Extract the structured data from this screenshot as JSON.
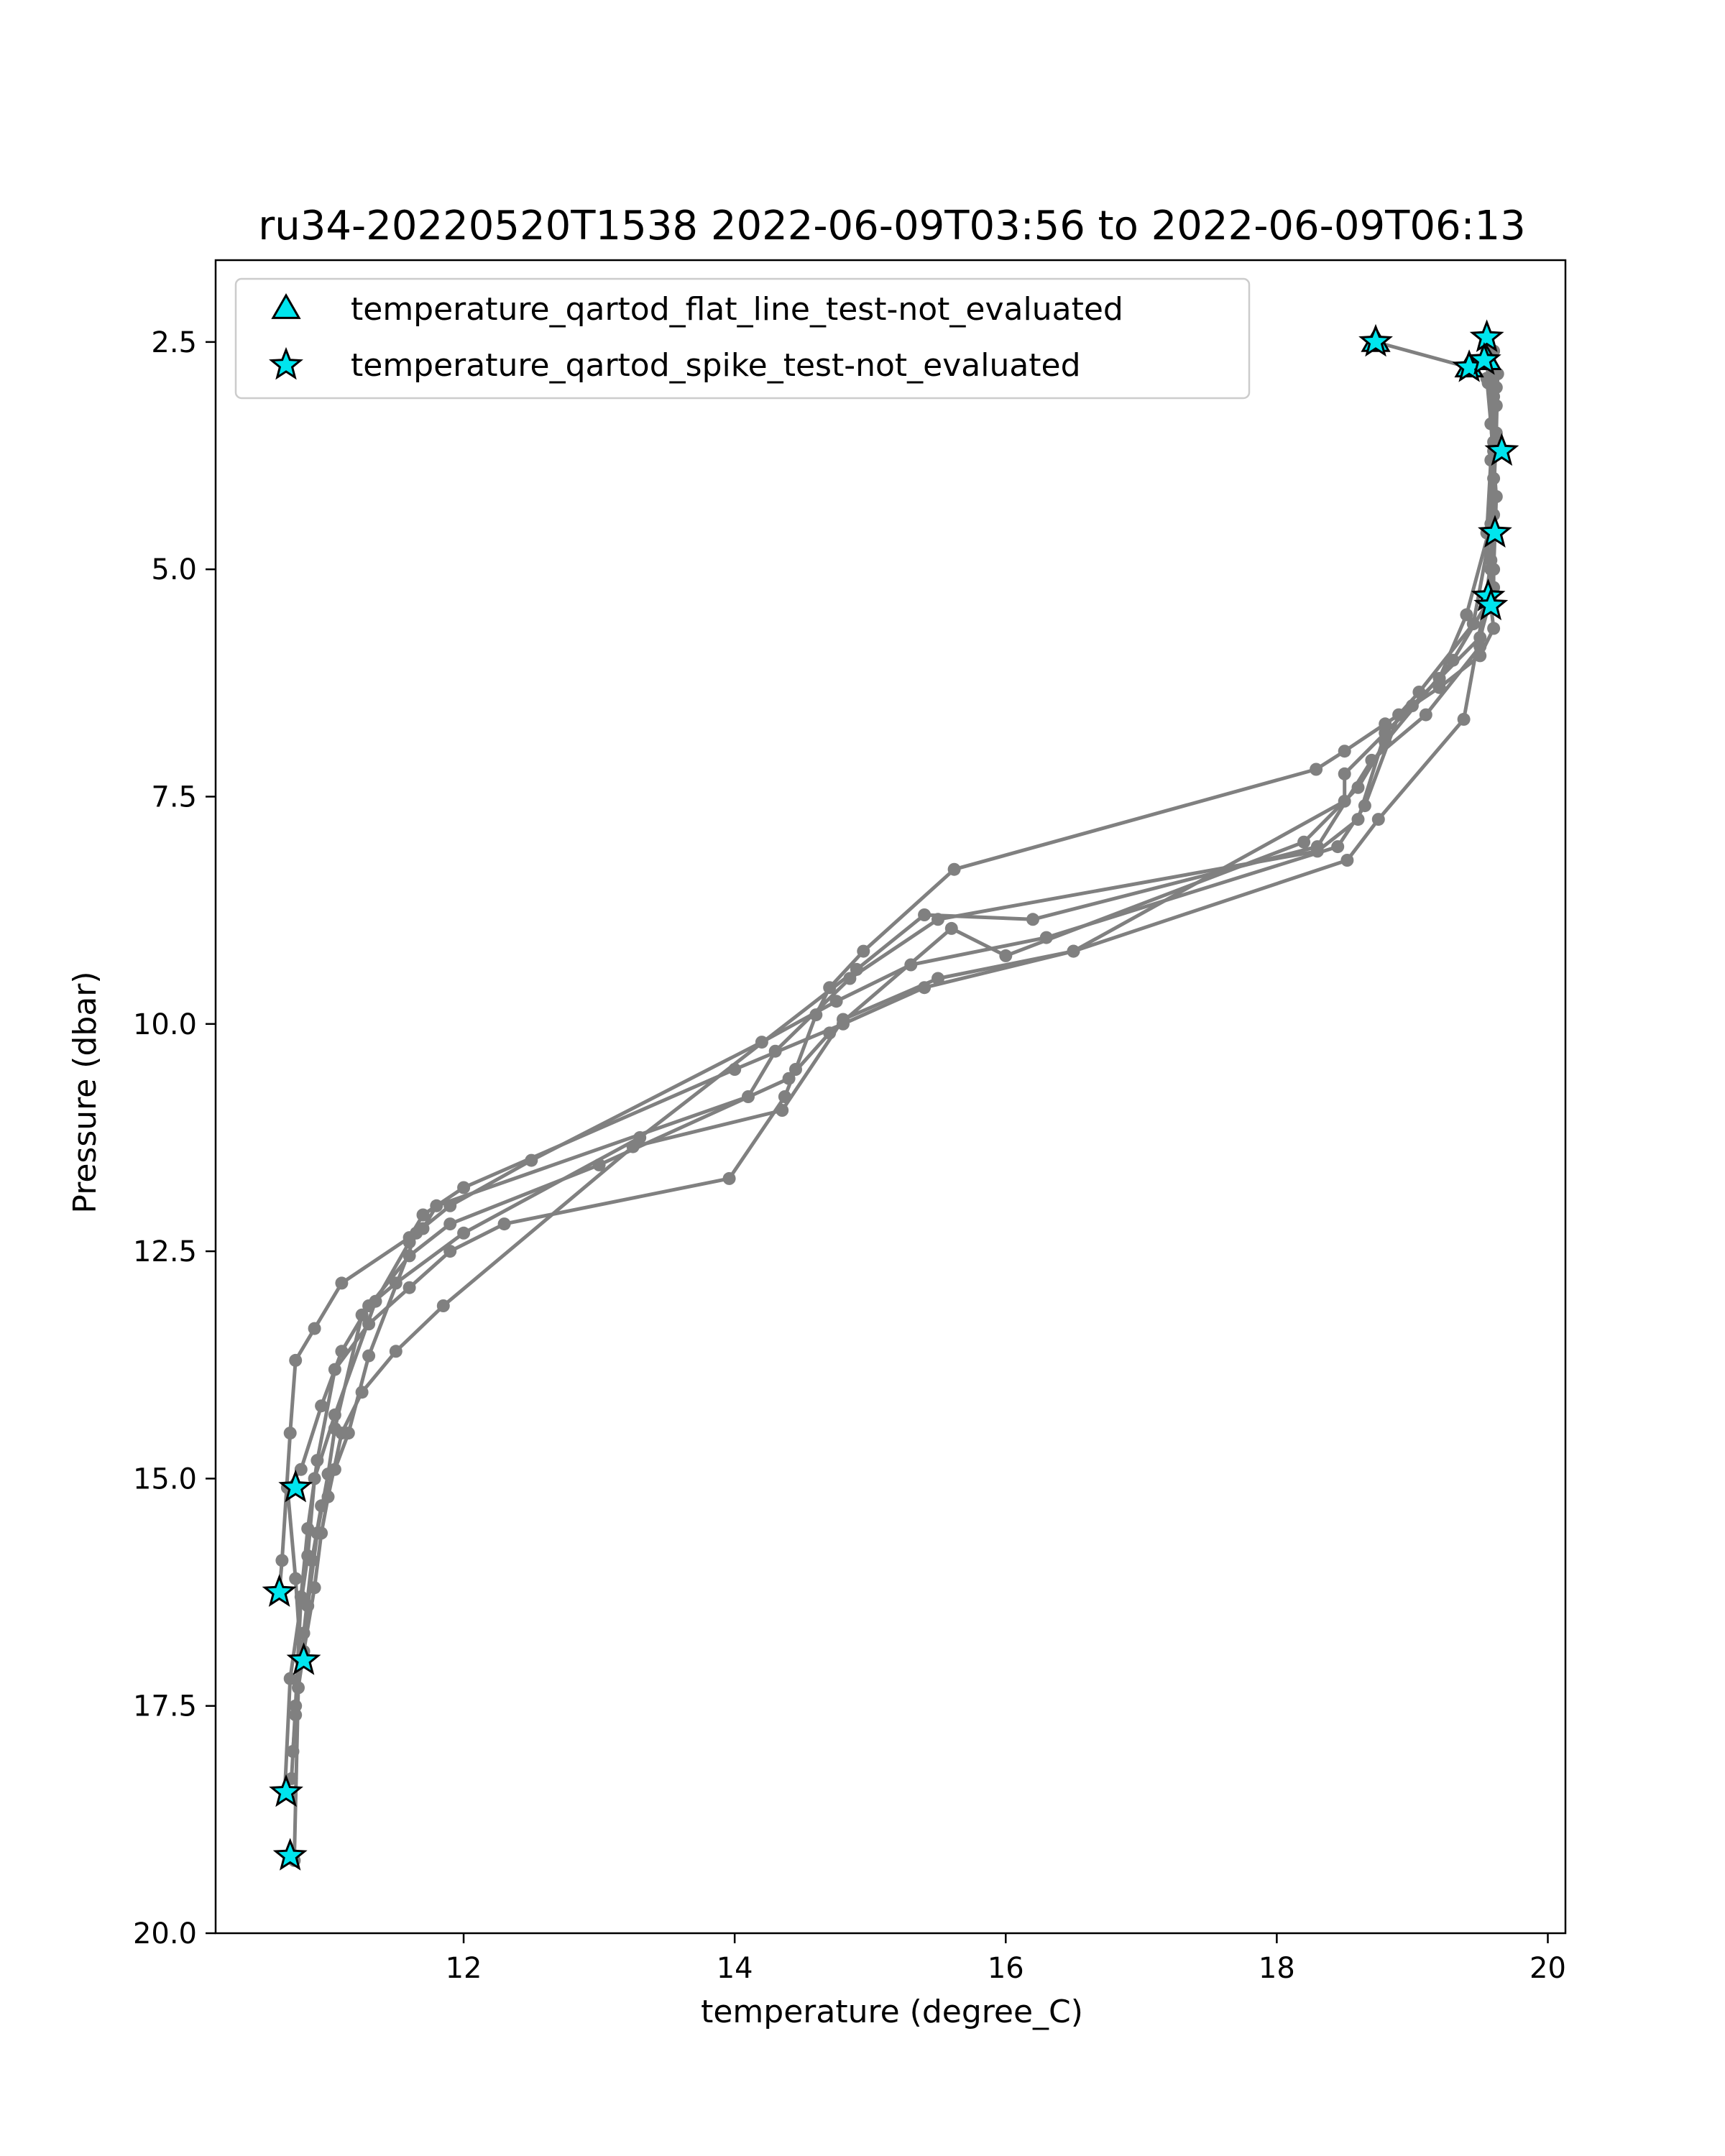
{
  "chart_data": {
    "type": "line",
    "title": "ru34-20220520T1538 2022-06-09T03:56 to 2022-06-09T06:13",
    "xlabel": "temperature (degree_C)",
    "ylabel": "Pressure (dbar)",
    "xlim": [
      10.17,
      20.13
    ],
    "ylim": [
      20.0,
      1.6
    ],
    "y_inverted": true,
    "xticks": [
      12,
      14,
      16,
      18,
      20
    ],
    "xtick_labels": [
      "12",
      "14",
      "16",
      "18",
      "20"
    ],
    "yticks": [
      2.5,
      5.0,
      7.5,
      10.0,
      12.5,
      15.0,
      17.5,
      20.0
    ],
    "ytick_labels": [
      "2.5",
      "5.0",
      "7.5",
      "10.0",
      "12.5",
      "15.0",
      "17.5",
      "20.0"
    ],
    "grid": false,
    "legend_position": "top-left",
    "line_color": "#808080",
    "marker_color": "#00e5ee",
    "legend": [
      {
        "label": "temperature_qartod_flat_line_test-not_evaluated",
        "marker": "triangle"
      },
      {
        "label": "temperature_qartod_spike_test-not_evaluated",
        "marker": "star"
      }
    ],
    "series": [
      {
        "x": [
          18.73,
          19.42,
          19.55,
          19.58,
          19.62,
          19.6,
          19.58,
          19.6,
          19.5,
          19.2,
          18.8,
          18.5,
          18.29,
          15.62,
          14.95,
          14.7,
          14.6,
          14.45,
          14.37,
          13.96,
          12.3,
          11.9,
          11.6,
          11.3,
          11.05,
          10.92,
          10.85,
          10.8,
          10.76,
          10.73
        ],
        "y": [
          2.5,
          2.78,
          2.9,
          3.4,
          4.2,
          5.0,
          5.4,
          5.65,
          5.95,
          6.3,
          6.7,
          7.0,
          7.2,
          8.3,
          9.2,
          9.6,
          9.9,
          10.5,
          10.8,
          11.7,
          12.2,
          12.5,
          12.9,
          13.3,
          13.8,
          14.8,
          15.55,
          16.3,
          17.5,
          18.3
        ]
      },
      {
        "x": [
          19.55,
          19.57,
          19.6,
          19.6,
          19.6,
          19.5,
          19.0,
          18.5,
          18.5,
          16.5,
          15.4,
          14.8,
          14.0,
          12.0,
          11.7,
          11.6,
          11.1,
          10.9,
          10.76,
          10.72,
          10.66,
          10.64
        ],
        "y": [
          2.5,
          2.7,
          3.6,
          4.6,
          5.2,
          5.75,
          6.5,
          7.25,
          7.55,
          9.2,
          9.6,
          10.0,
          10.5,
          11.8,
          12.1,
          12.35,
          12.85,
          13.35,
          13.7,
          14.5,
          15.9,
          16.25
        ]
      },
      {
        "x": [
          19.63,
          19.62,
          19.58,
          19.5,
          19.1,
          18.7,
          18.3,
          16.2,
          15.4,
          14.9,
          13.3,
          12.0,
          11.5,
          11.3,
          11.1,
          10.95,
          10.8,
          10.7,
          10.76,
          10.8
        ],
        "y": [
          2.85,
          3.5,
          4.9,
          5.85,
          6.6,
          7.1,
          8.05,
          8.85,
          8.8,
          9.4,
          11.25,
          12.3,
          12.85,
          13.1,
          13.6,
          14.2,
          14.9,
          15.1,
          16.1,
          17.0
        ]
      },
      {
        "x": [
          19.6,
          19.58,
          19.55,
          19.58,
          19.3,
          18.8,
          18.6,
          18.2,
          16.0,
          15.6,
          14.7,
          14.4,
          13.0,
          11.9,
          11.6,
          11.25,
          11.05,
          11.0,
          10.92,
          10.85,
          10.8
        ],
        "y": [
          3.1,
          3.8,
          4.6,
          5.3,
          6.0,
          6.9,
          7.4,
          8.0,
          9.25,
          8.95,
          10.1,
          10.6,
          11.55,
          12.2,
          12.55,
          13.2,
          14.45,
          14.95,
          15.6,
          16.4,
          17.0
        ]
      },
      {
        "x": [
          19.6,
          19.62,
          19.58,
          19.4,
          19.2,
          18.8,
          18.6,
          18.3,
          15.5,
          14.85,
          14.3,
          14.1,
          11.8,
          11.7,
          11.6,
          11.35,
          11.05,
          10.9,
          10.85,
          10.72,
          10.68
        ],
        "y": [
          2.6,
          3.2,
          4.5,
          5.5,
          6.2,
          6.8,
          7.75,
          8.1,
          8.85,
          9.5,
          10.3,
          10.8,
          12.0,
          12.25,
          12.4,
          13.05,
          14.3,
          15.0,
          15.85,
          17.2,
          18.45
        ]
      },
      {
        "x": [
          19.62,
          19.6,
          19.58,
          19.38,
          18.75,
          18.52,
          16.5,
          15.5,
          14.8,
          14.35,
          13.25,
          11.85,
          11.5,
          11.25,
          11.1,
          11.0,
          10.95,
          10.9,
          10.82,
          10.78,
          10.75
        ],
        "y": [
          3.0,
          4.0,
          5.0,
          6.65,
          7.75,
          8.2,
          9.2,
          9.5,
          9.95,
          10.95,
          11.35,
          13.1,
          13.6,
          14.05,
          14.5,
          15.2,
          15.6,
          16.2,
          16.9,
          17.3,
          19.2
        ]
      },
      {
        "x": [
          19.55,
          19.56,
          19.6,
          19.6,
          19.45,
          19.05,
          18.9,
          18.65,
          18.45,
          16.3,
          15.3,
          14.75,
          14.2,
          12.5,
          11.9,
          11.65,
          11.3,
          11.15,
          11.05,
          10.95,
          10.88,
          10.82,
          10.76,
          10.74
        ],
        "y": [
          2.58,
          2.95,
          3.7,
          4.4,
          5.6,
          6.35,
          6.6,
          7.6,
          8.05,
          9.05,
          9.35,
          9.75,
          10.2,
          11.5,
          12.0,
          12.3,
          13.65,
          14.5,
          14.9,
          15.3,
          15.9,
          16.7,
          17.6,
          18.0
        ]
      }
    ],
    "flat_line_markers": {
      "x": [
        18.73,
        19.42,
        19.55
      ],
      "y": [
        2.5,
        2.78,
        2.7
      ]
    },
    "spike_markers": {
      "x": [
        18.73,
        19.42,
        19.55,
        19.53,
        19.66,
        19.61,
        19.56,
        19.58,
        10.76,
        10.64,
        10.82,
        10.69,
        10.72
      ],
      "y": [
        2.5,
        2.78,
        2.45,
        2.7,
        3.7,
        4.6,
        5.3,
        5.4,
        15.1,
        16.25,
        17.0,
        18.45,
        19.15
      ]
    }
  }
}
